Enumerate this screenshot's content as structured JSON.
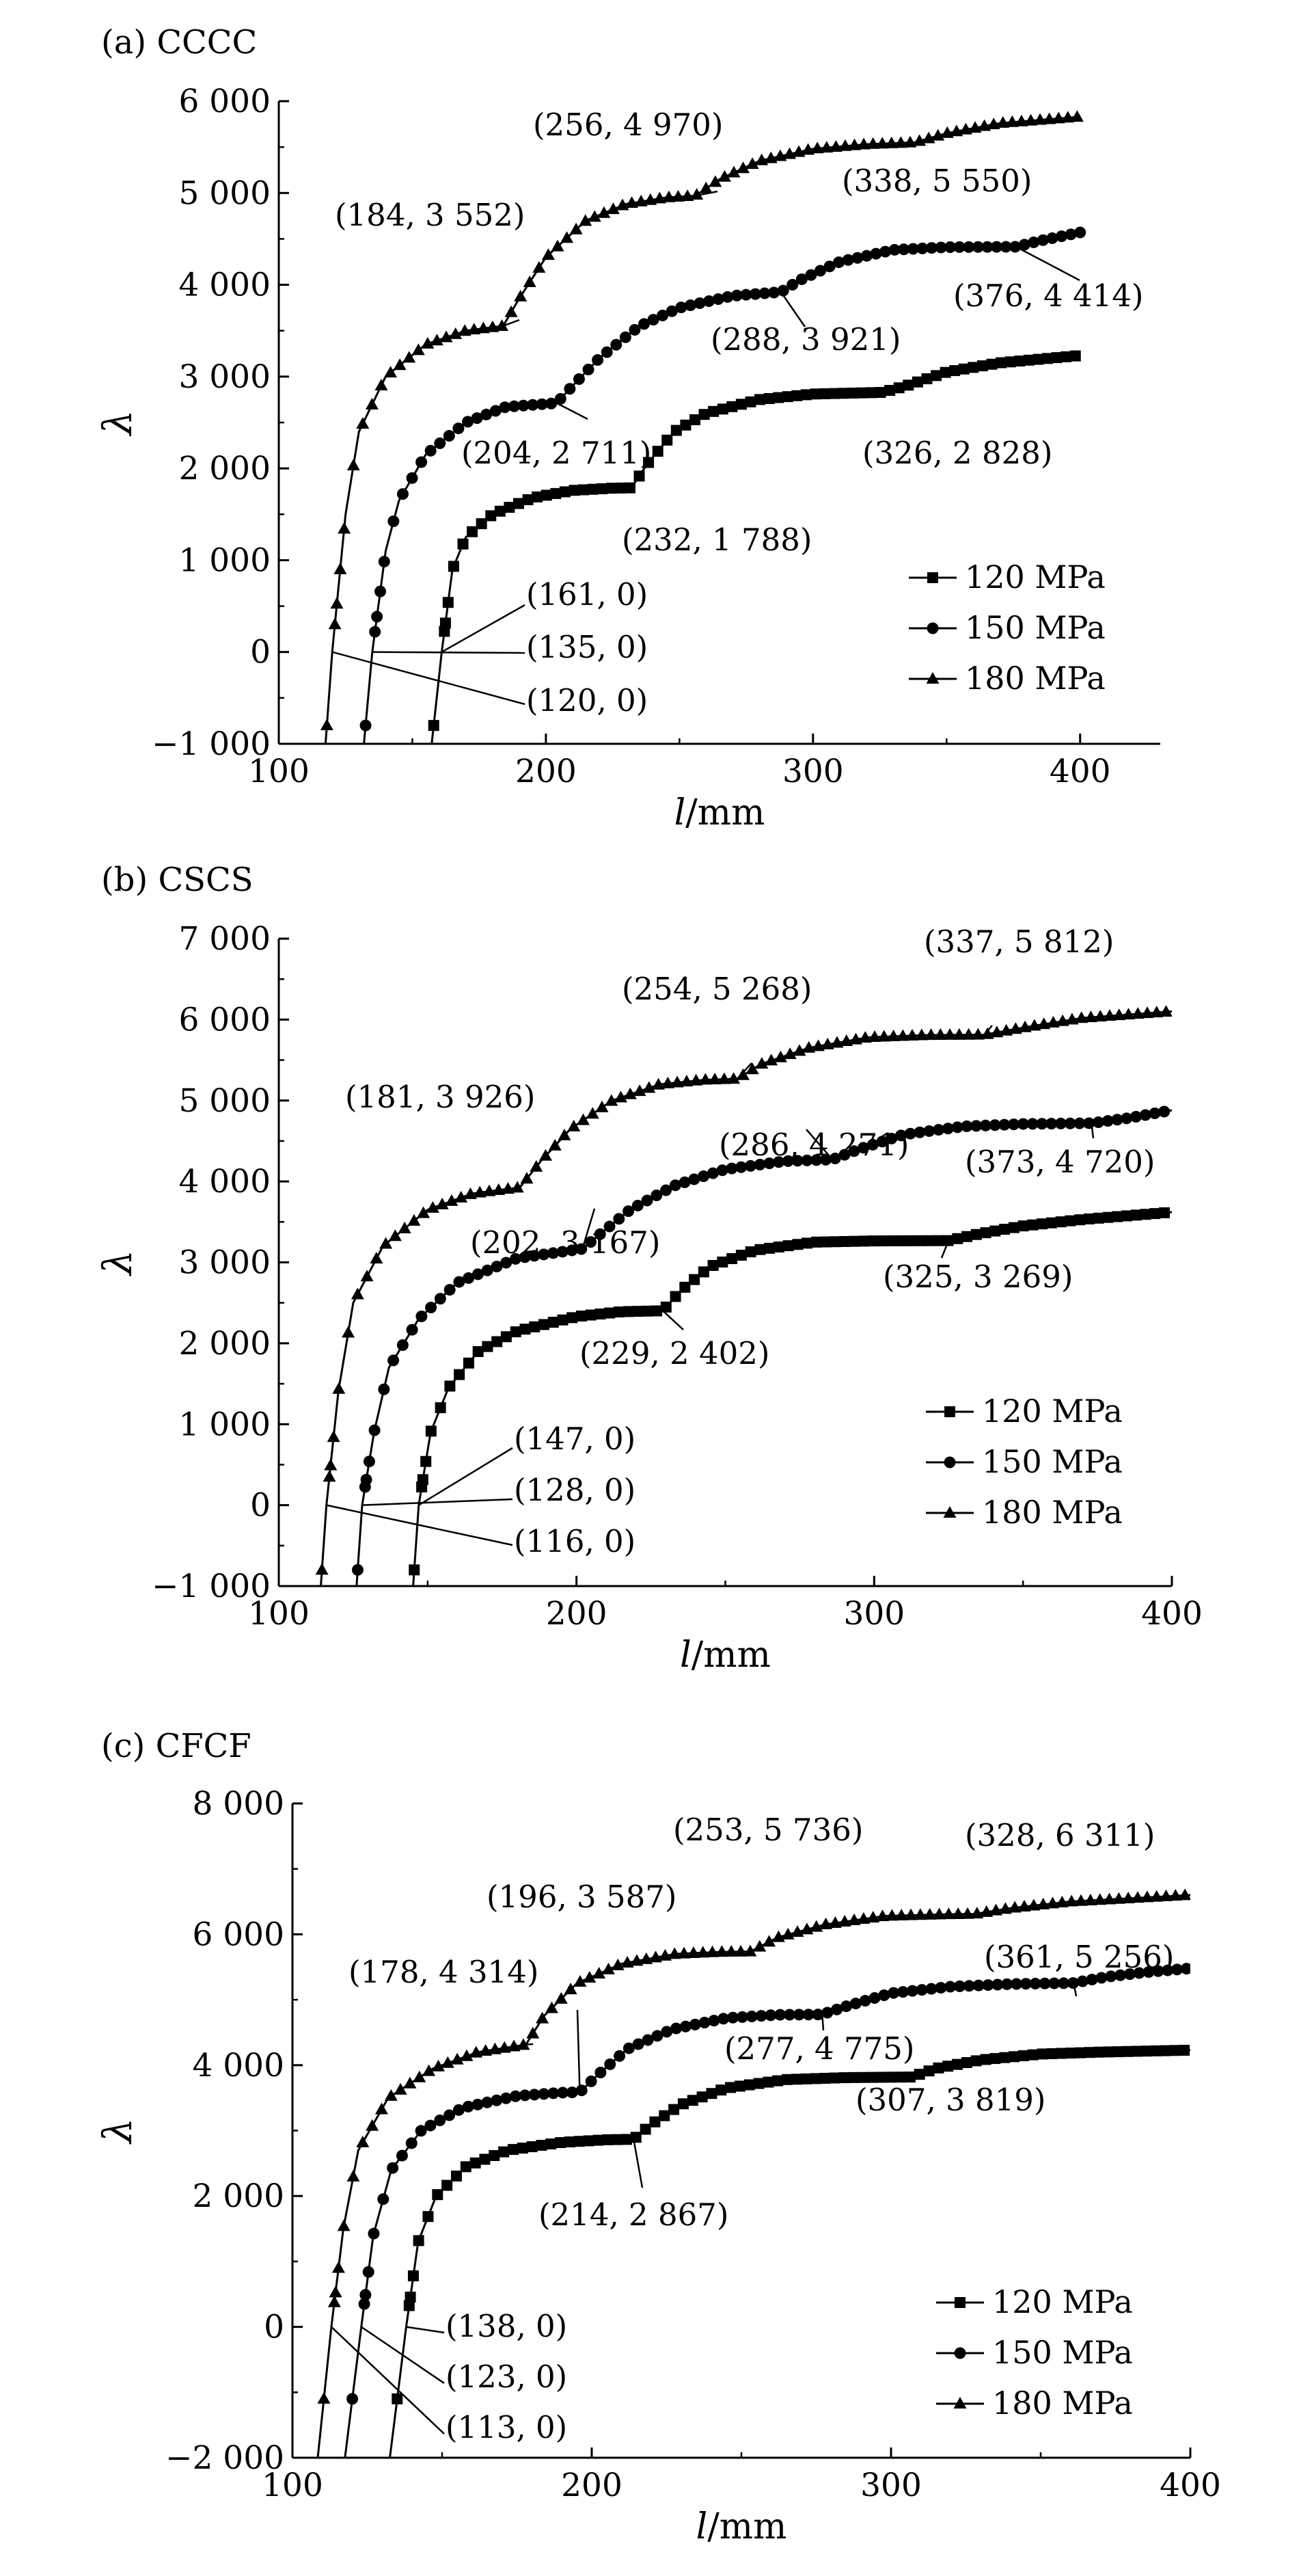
{
  "chart_data": [
    {
      "type": "line",
      "title": "(a) CCCC",
      "xlabel_var": "l",
      "xlabel_unit": "/mm",
      "ylabel": "λ",
      "xlim": [
        100,
        430
      ],
      "ylim": [
        -1000,
        6000
      ],
      "xticks": [
        100,
        200,
        300,
        400
      ],
      "xtick_labels": [
        "100",
        "200",
        "300",
        "400"
      ],
      "yticks": [
        -1000,
        0,
        1000,
        2000,
        3000,
        4000,
        5000,
        6000
      ],
      "ytick_labels": [
        "−1 000",
        "0",
        "1 000",
        "2 000",
        "3 000",
        "4 000",
        "5 000",
        "6 000"
      ],
      "legend_position": "lower-right",
      "series": [
        {
          "name": "120 MPa",
          "marker": "square",
          "x": [
            155,
            161,
            165,
            170,
            180,
            195,
            210,
            225,
            232,
            238,
            248,
            260,
            280,
            300,
            326,
            335,
            350,
            370,
            400
          ],
          "y": [
            -1600,
            0,
            900,
            1250,
            1500,
            1680,
            1760,
            1785,
            1788,
            2050,
            2400,
            2600,
            2750,
            2810,
            2828,
            2900,
            3050,
            3150,
            3230
          ]
        },
        {
          "name": "150 MPa",
          "marker": "circle",
          "x": [
            130,
            135,
            140,
            145,
            155,
            170,
            185,
            204,
            210,
            220,
            235,
            250,
            270,
            288,
            295,
            310,
            330,
            350,
            376,
            385,
            400
          ],
          "y": [
            -1600,
            0,
            1100,
            1650,
            2150,
            2500,
            2670,
            2711,
            2900,
            3200,
            3550,
            3750,
            3880,
            3921,
            4050,
            4250,
            4380,
            4410,
            4414,
            4480,
            4570
          ]
        },
        {
          "name": "180 MPa",
          "marker": "triangle",
          "x": [
            116,
            120,
            125,
            130,
            140,
            155,
            170,
            184,
            190,
            200,
            215,
            230,
            245,
            256,
            265,
            280,
            300,
            320,
            338,
            350,
            370,
            400
          ],
          "y": [
            -1600,
            0,
            1500,
            2400,
            3000,
            3350,
            3500,
            3552,
            3850,
            4300,
            4700,
            4880,
            4950,
            4970,
            5150,
            5350,
            5480,
            5530,
            5550,
            5650,
            5760,
            5830
          ]
        }
      ],
      "annotations": [
        {
          "text": "(256, 4 970)",
          "x": 256,
          "y": 4970
        },
        {
          "text": "(184, 3 552)",
          "x": 184,
          "y": 3552
        },
        {
          "text": "(338, 5 550)",
          "x": 338,
          "y": 5550
        },
        {
          "text": "(376, 4 414)",
          "x": 376,
          "y": 4414
        },
        {
          "text": "(288, 3 921)",
          "x": 288,
          "y": 3921
        },
        {
          "text": "(204, 2 711)",
          "x": 204,
          "y": 2711
        },
        {
          "text": "(326, 2 828)",
          "x": 326,
          "y": 2828
        },
        {
          "text": "(232, 1 788)",
          "x": 232,
          "y": 1788
        },
        {
          "text": "(161, 0)",
          "x": 161,
          "y": 0
        },
        {
          "text": "(135, 0)",
          "x": 135,
          "y": 0
        },
        {
          "text": "(120, 0)",
          "x": 120,
          "y": 0
        }
      ]
    },
    {
      "type": "line",
      "title": "(b) CSCS",
      "xlabel_var": "l",
      "xlabel_unit": "/mm",
      "ylabel": "λ",
      "xlim": [
        100,
        400
      ],
      "ylim": [
        -1000,
        7000
      ],
      "xticks": [
        100,
        200,
        300,
        400
      ],
      "xtick_labels": [
        "100",
        "200",
        "300",
        "400"
      ],
      "yticks": [
        -1000,
        0,
        1000,
        2000,
        3000,
        4000,
        5000,
        6000,
        7000
      ],
      "ytick_labels": [
        "−1 000",
        "0",
        "1 000",
        "2 000",
        "3 000",
        "4 000",
        "5 000",
        "6 000",
        "7 000"
      ],
      "legend_position": "lower-right",
      "series": [
        {
          "name": "120 MPa",
          "marker": "square",
          "x": [
            144,
            147,
            151,
            157,
            167,
            180,
            200,
            215,
            229,
            235,
            245,
            260,
            280,
            300,
            325,
            335,
            350,
            370,
            400
          ],
          "y": [
            -1600,
            0,
            900,
            1450,
            1900,
            2150,
            2330,
            2390,
            2402,
            2650,
            2950,
            3150,
            3250,
            3265,
            3269,
            3350,
            3450,
            3530,
            3620
          ]
        },
        {
          "name": "150 MPa",
          "marker": "circle",
          "x": [
            125,
            128,
            132,
            137,
            147,
            160,
            180,
            202,
            208,
            218,
            233,
            250,
            270,
            286,
            295,
            310,
            330,
            350,
            373,
            385,
            400
          ],
          "y": [
            -1600,
            0,
            900,
            1700,
            2300,
            2750,
            3050,
            3167,
            3350,
            3650,
            3950,
            4150,
            4250,
            4271,
            4400,
            4580,
            4680,
            4710,
            4720,
            4780,
            4880
          ]
        },
        {
          "name": "180 MPa",
          "marker": "triangle",
          "x": [
            113,
            116,
            120,
            125,
            135,
            150,
            165,
            181,
            188,
            198,
            212,
            228,
            243,
            254,
            262,
            278,
            298,
            318,
            337,
            350,
            370,
            400
          ],
          "y": [
            -1600,
            0,
            1400,
            2500,
            3200,
            3650,
            3850,
            3926,
            4250,
            4650,
            5000,
            5200,
            5255,
            5268,
            5450,
            5650,
            5780,
            5808,
            5812,
            5900,
            6020,
            6100
          ]
        }
      ],
      "annotations": [
        {
          "text": "(337, 5 812)",
          "x": 337,
          "y": 5812
        },
        {
          "text": "(254, 5 268)",
          "x": 254,
          "y": 5268
        },
        {
          "text": "(181, 3 926)",
          "x": 181,
          "y": 3926
        },
        {
          "text": "(373, 4 720)",
          "x": 373,
          "y": 4720
        },
        {
          "text": "(286, 4 271)",
          "x": 286,
          "y": 4271
        },
        {
          "text": "(202, 3 167)",
          "x": 202,
          "y": 3167
        },
        {
          "text": "(325, 3 269)",
          "x": 325,
          "y": 3269
        },
        {
          "text": "(229, 2 402)",
          "x": 229,
          "y": 2402
        },
        {
          "text": "(147, 0)",
          "x": 147,
          "y": 0
        },
        {
          "text": "(128, 0)",
          "x": 128,
          "y": 0
        },
        {
          "text": "(116, 0)",
          "x": 116,
          "y": 0
        }
      ]
    },
    {
      "type": "line",
      "title": "(c) CFCF",
      "xlabel_var": "l",
      "xlabel_unit": "/mm",
      "ylabel": "λ",
      "xlim": [
        100,
        400
      ],
      "ylim": [
        -2000,
        8000
      ],
      "xticks": [
        100,
        200,
        300,
        400
      ],
      "xtick_labels": [
        "100",
        "200",
        "300",
        "400"
      ],
      "yticks": [
        -2000,
        0,
        2000,
        4000,
        6000,
        8000
      ],
      "ytick_labels": [
        "−2 000",
        "0",
        "2 000",
        "4 000",
        "6 000",
        "8 000"
      ],
      "legend_position": "lower-right",
      "series": [
        {
          "name": "120 MPa",
          "marker": "square",
          "x": [
            132,
            138,
            142,
            148,
            158,
            172,
            190,
            205,
            214,
            220,
            230,
            245,
            265,
            285,
            307,
            315,
            330,
            350,
            370,
            400
          ],
          "y": [
            -2200,
            0,
            1300,
            2000,
            2450,
            2700,
            2820,
            2860,
            2867,
            3100,
            3400,
            3650,
            3780,
            3810,
            3819,
            3950,
            4080,
            4170,
            4200,
            4230
          ]
        },
        {
          "name": "150 MPa",
          "marker": "circle",
          "x": [
            117,
            123,
            127,
            133,
            143,
            157,
            175,
            190,
            196,
            202,
            212,
            227,
            245,
            262,
            277,
            285,
            300,
            320,
            340,
            361,
            372,
            385,
            400
          ],
          "y": [
            -2200,
            0,
            1400,
            2400,
            3000,
            3350,
            3530,
            3580,
            3587,
            3850,
            4250,
            4550,
            4720,
            4770,
            4775,
            4900,
            5100,
            5200,
            5240,
            5256,
            5350,
            5420,
            5480
          ]
        },
        {
          "name": "180 MPa",
          "marker": "triangle",
          "x": [
            108,
            113,
            117,
            122,
            132,
            147,
            162,
            178,
            184,
            195,
            210,
            228,
            243,
            253,
            262,
            278,
            298,
            318,
            328,
            340,
            360,
            400
          ],
          "y": [
            -2200,
            0,
            1500,
            2700,
            3500,
            3950,
            4200,
            4314,
            4750,
            5250,
            5550,
            5700,
            5730,
            5736,
            5950,
            6150,
            6280,
            6305,
            6311,
            6400,
            6500,
            6600
          ]
        }
      ],
      "annotations": [
        {
          "text": "(253, 5 736)",
          "x": 253,
          "y": 5736
        },
        {
          "text": "(328, 6 311)",
          "x": 328,
          "y": 6311
        },
        {
          "text": "(196, 3 587)",
          "x": 196,
          "y": 3587
        },
        {
          "text": "(361, 5 256)",
          "x": 361,
          "y": 5256
        },
        {
          "text": "(178, 4 314)",
          "x": 178,
          "y": 4314
        },
        {
          "text": "(277, 4 775)",
          "x": 277,
          "y": 4775
        },
        {
          "text": "(307, 3 819)",
          "x": 307,
          "y": 3819
        },
        {
          "text": "(214, 2 867)",
          "x": 214,
          "y": 2867
        },
        {
          "text": "(138, 0)",
          "x": 138,
          "y": 0
        },
        {
          "text": "(123, 0)",
          "x": 123,
          "y": 0
        },
        {
          "text": "(113, 0)",
          "x": 113,
          "y": 0
        }
      ]
    }
  ]
}
